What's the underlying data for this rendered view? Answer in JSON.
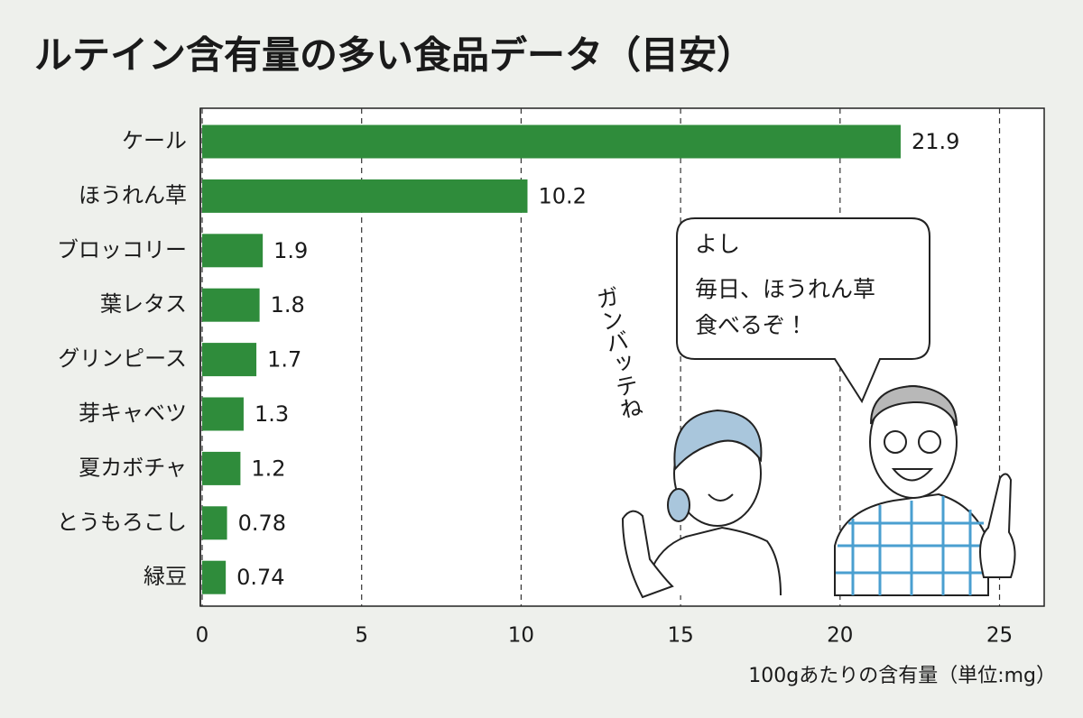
{
  "chart_data": {
    "type": "bar",
    "orientation": "horizontal",
    "title": "ルテイン含有量の多い食品データ（目安）",
    "x_label": "100gあたりの含有量（単位:mg）",
    "categories": [
      "ケール",
      "ほうれん草",
      "ブロッコリー",
      "葉レタス",
      "グリンピース",
      "芽キャベツ",
      "夏カボチャ",
      "とうもろこし",
      "緑豆"
    ],
    "values": [
      21.9,
      10.2,
      1.9,
      1.8,
      1.7,
      1.3,
      1.2,
      0.78,
      0.74
    ],
    "color": "#2f8c3b",
    "xlim": [
      0,
      26.4
    ],
    "xticks": [
      0,
      5,
      10,
      15,
      20,
      25
    ],
    "grid": true,
    "annotations": [
      "よし",
      "毎日、ほうれん草",
      "食べるぞ！",
      "ガンバッテね"
    ]
  }
}
